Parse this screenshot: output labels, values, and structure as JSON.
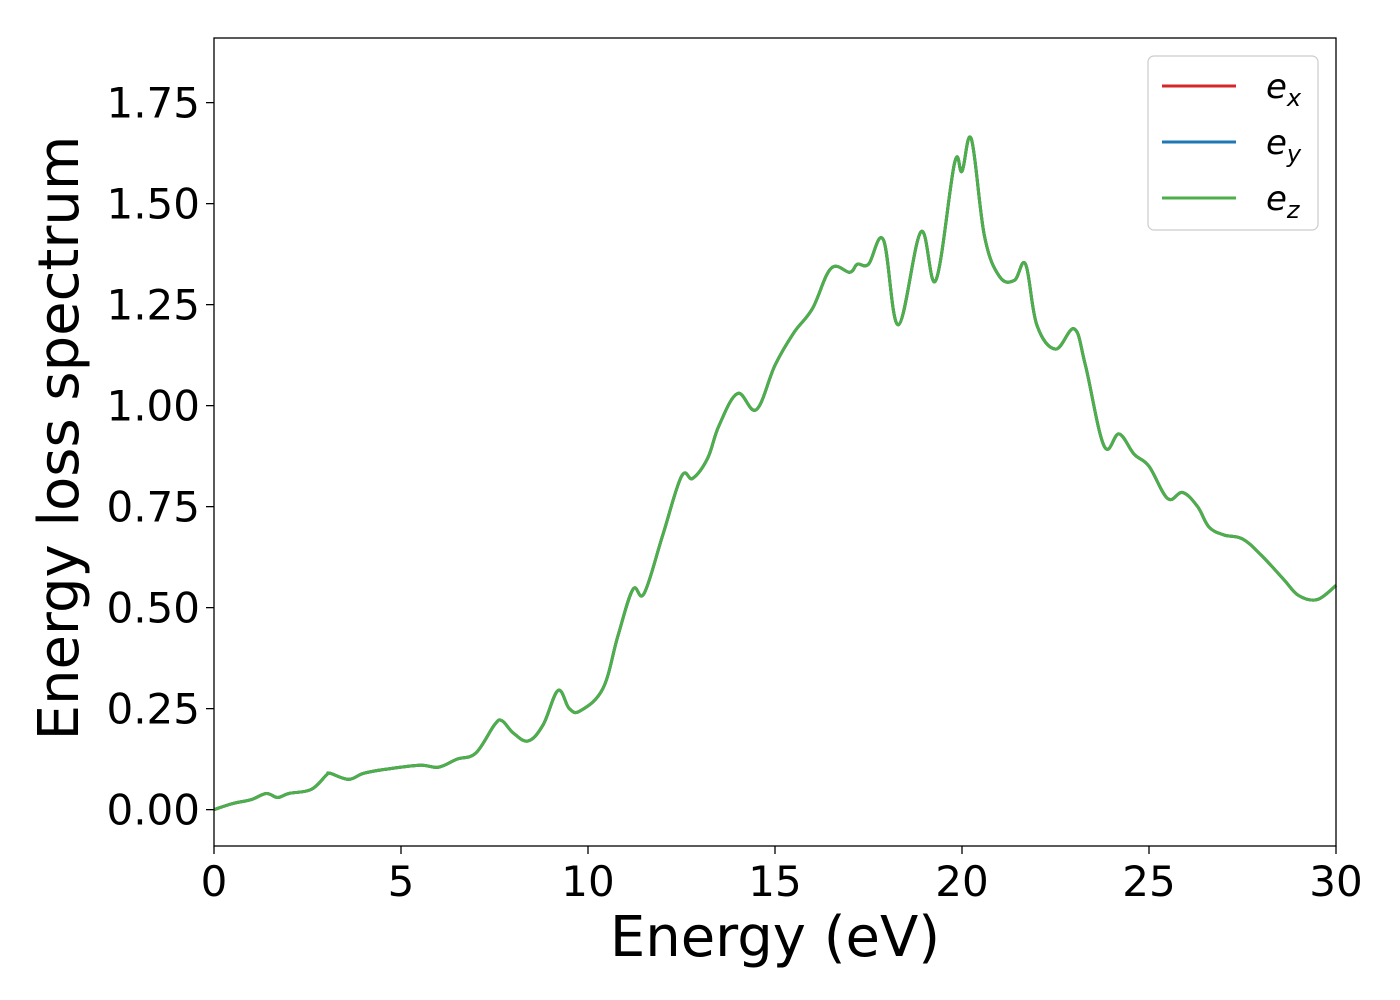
{
  "chart_data": {
    "type": "line",
    "xlabel": "Energy (eV)",
    "ylabel": "Energy loss spectrum",
    "xlim": [
      0,
      30
    ],
    "ylim": [
      -0.09,
      1.91
    ],
    "xticks": [
      0,
      5,
      10,
      15,
      20,
      25,
      30
    ],
    "xtick_labels": [
      "0",
      "5",
      "10",
      "15",
      "20",
      "25",
      "30"
    ],
    "yticks": [
      0.0,
      0.25,
      0.5,
      0.75,
      1.0,
      1.25,
      1.5,
      1.75
    ],
    "ytick_labels": [
      "0.00",
      "0.25",
      "0.50",
      "0.75",
      "1.00",
      "1.25",
      "1.50",
      "1.75"
    ],
    "grid": false,
    "legend_position": "top-right",
    "x": [
      0,
      0.5,
      1.0,
      1.4,
      1.7,
      2.0,
      2.6,
      3.0,
      3.1,
      3.6,
      4.0,
      4.6,
      5.5,
      6.0,
      6.5,
      7.0,
      7.5,
      7.7,
      8.0,
      8.4,
      8.8,
      9.2,
      9.5,
      9.8,
      10.4,
      10.8,
      11.2,
      11.5,
      12.0,
      12.5,
      12.8,
      13.2,
      13.5,
      14.0,
      14.5,
      15.0,
      15.5,
      16.0,
      16.5,
      17.0,
      17.2,
      17.5,
      17.9,
      18.3,
      18.9,
      19.3,
      19.8,
      20.0,
      20.25,
      20.6,
      21.0,
      21.4,
      21.7,
      22.0,
      22.5,
      23.0,
      23.3,
      23.8,
      24.2,
      24.6,
      25.0,
      25.5,
      25.9,
      26.3,
      26.6,
      27.0,
      27.5,
      28.0,
      28.6,
      29.0,
      29.5,
      30.0
    ],
    "series": [
      {
        "name": "e_x",
        "label_base": "e",
        "label_sub": "x",
        "color": "#d62728"
      },
      {
        "name": "e_y",
        "label_base": "e",
        "label_sub": "y",
        "color": "#1f77b4"
      },
      {
        "name": "e_z",
        "label_base": "e",
        "label_sub": "z",
        "color": "#4daf4a"
      }
    ],
    "values": [
      0.0,
      0.015,
      0.025,
      0.04,
      0.03,
      0.04,
      0.05,
      0.085,
      0.09,
      0.075,
      0.09,
      0.1,
      0.11,
      0.105,
      0.125,
      0.14,
      0.21,
      0.22,
      0.19,
      0.17,
      0.21,
      0.295,
      0.25,
      0.245,
      0.3,
      0.43,
      0.545,
      0.535,
      0.68,
      0.825,
      0.82,
      0.87,
      0.95,
      1.03,
      0.99,
      1.1,
      1.18,
      1.24,
      1.34,
      1.33,
      1.35,
      1.35,
      1.41,
      1.2,
      1.43,
      1.31,
      1.6,
      1.58,
      1.66,
      1.42,
      1.32,
      1.31,
      1.35,
      1.2,
      1.14,
      1.19,
      1.1,
      0.9,
      0.93,
      0.88,
      0.85,
      0.77,
      0.785,
      0.75,
      0.7,
      0.68,
      0.67,
      0.63,
      0.57,
      0.53,
      0.52,
      0.555
    ]
  }
}
